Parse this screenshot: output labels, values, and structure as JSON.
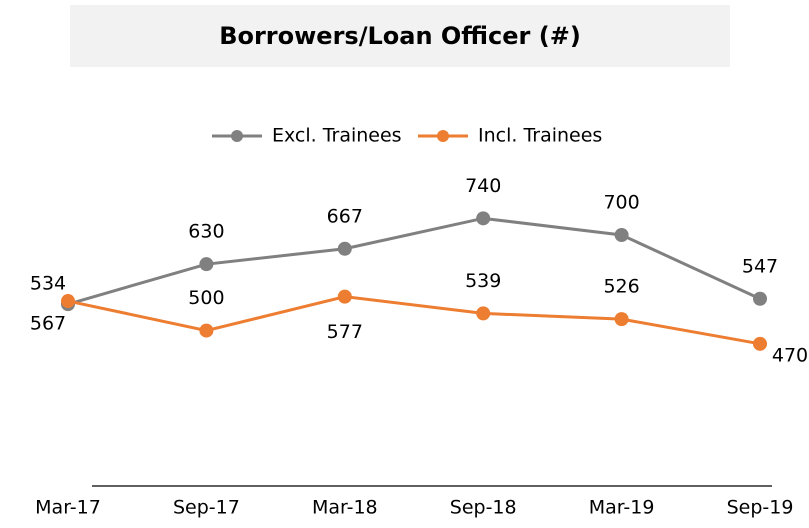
{
  "chart_data": {
    "type": "line",
    "title": "Borrowers/Loan Officer (#)",
    "categories": [
      "Mar-17",
      "Sep-17",
      "Mar-18",
      "Sep-18",
      "Mar-19",
      "Sep-19"
    ],
    "series": [
      {
        "name": "Excl. Trainees",
        "color": "#808080",
        "values": [
          534,
          630,
          667,
          740,
          700,
          547
        ]
      },
      {
        "name": "Incl. Trainees",
        "color": "#ed7d31",
        "values": [
          567,
          500,
          577,
          539,
          526,
          470
        ],
        "axis": "y2"
      }
    ],
    "ylim": [
      100,
      1000
    ],
    "y2lim": [
      150,
      1000
    ],
    "legend": "top"
  }
}
